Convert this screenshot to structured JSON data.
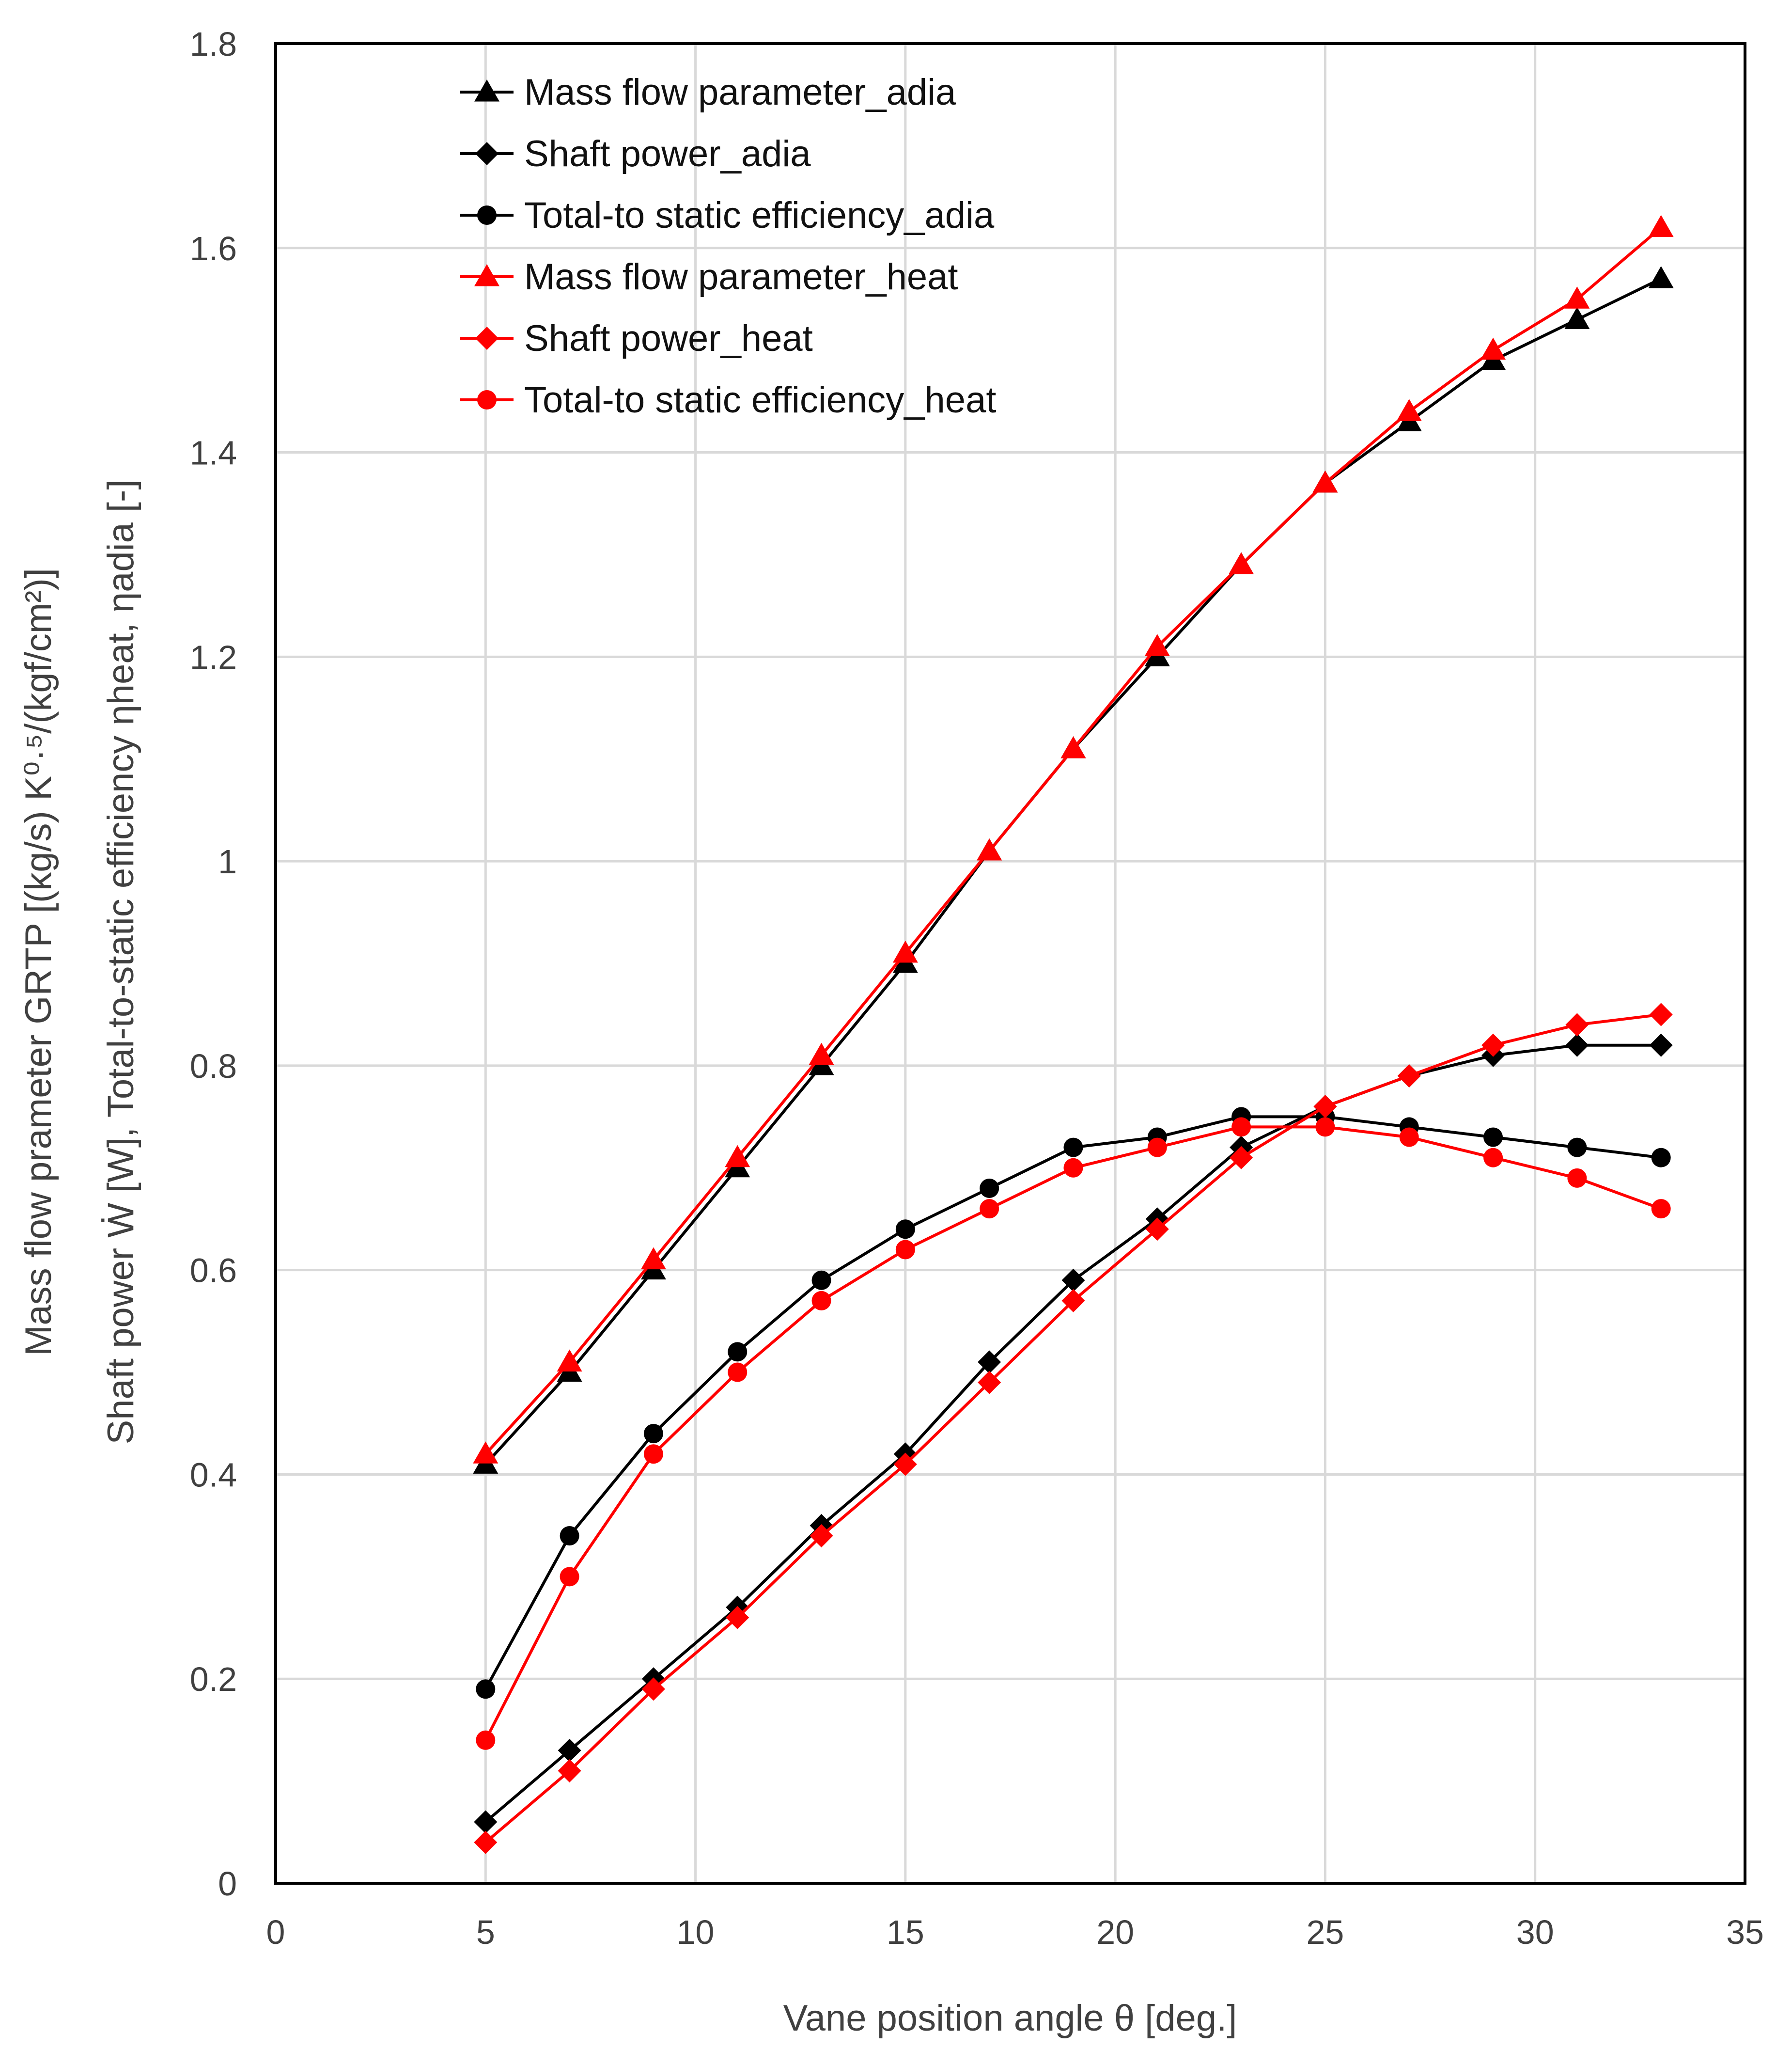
{
  "chart_data": {
    "type": "line",
    "title": "",
    "xlabel": "Vane position angle θ [deg.]",
    "ylabel_line1": "Mass flow prameter GRTP [(kg/s) K⁰·⁵/(kgf/cm²)]",
    "ylabel_line2": "Shaft power Ẇ [W], Total-to-static efficiency ηheat, ηadia [-]",
    "xlim": [
      0,
      35
    ],
    "ylim": [
      0,
      1.8
    ],
    "xticks": [
      0,
      5,
      10,
      15,
      20,
      25,
      30,
      35
    ],
    "yticks": [
      0,
      0.2,
      0.4,
      0.6,
      0.8,
      1,
      1.2,
      1.4,
      1.6,
      1.8
    ],
    "xtick_labels": [
      "0",
      "5",
      "10",
      "15",
      "20",
      "25",
      "30",
      "35"
    ],
    "ytick_labels": [
      "0",
      "0.2",
      "0.4",
      "0.6",
      "0.8",
      "1",
      "1.2",
      "1.4",
      "1.6",
      "1.8"
    ],
    "grid": true,
    "legend_position": "top-left",
    "x": [
      5,
      7,
      9,
      11,
      13,
      15,
      17,
      19,
      21,
      23,
      25,
      27,
      29,
      31,
      33
    ],
    "series": [
      {
        "name": "Mass flow parameter_adia",
        "marker": "triangle",
        "color": "#000000",
        "values": [
          0.41,
          0.5,
          0.6,
          0.7,
          0.8,
          0.9,
          1.01,
          1.11,
          1.2,
          1.29,
          1.37,
          1.43,
          1.49,
          1.53,
          1.57
        ]
      },
      {
        "name": "Shaft power_adia",
        "marker": "diamond",
        "color": "#000000",
        "values": [
          0.06,
          0.13,
          0.2,
          0.27,
          0.35,
          0.42,
          0.51,
          0.59,
          0.65,
          0.72,
          0.76,
          0.79,
          0.81,
          0.82,
          0.82
        ]
      },
      {
        "name": "Total-to static efficiency_adia",
        "marker": "circle",
        "color": "#000000",
        "values": [
          0.19,
          0.34,
          0.44,
          0.52,
          0.59,
          0.64,
          0.68,
          0.72,
          0.73,
          0.75,
          0.75,
          0.74,
          0.73,
          0.72,
          0.71
        ]
      },
      {
        "name": "Mass flow parameter_heat",
        "marker": "triangle",
        "color": "#ff0000",
        "values": [
          0.42,
          0.51,
          0.61,
          0.71,
          0.81,
          0.91,
          1.01,
          1.11,
          1.21,
          1.29,
          1.37,
          1.44,
          1.5,
          1.55,
          1.62
        ]
      },
      {
        "name": "Shaft power_heat",
        "marker": "diamond",
        "color": "#ff0000",
        "values": [
          0.04,
          0.11,
          0.19,
          0.26,
          0.34,
          0.41,
          0.49,
          0.57,
          0.64,
          0.71,
          0.76,
          0.79,
          0.82,
          0.84,
          0.85
        ]
      },
      {
        "name": "Total-to static efficiency_heat",
        "marker": "circle",
        "color": "#ff0000",
        "values": [
          0.14,
          0.3,
          0.42,
          0.5,
          0.57,
          0.62,
          0.66,
          0.7,
          0.72,
          0.74,
          0.74,
          0.73,
          0.71,
          0.69,
          0.66
        ]
      }
    ]
  }
}
